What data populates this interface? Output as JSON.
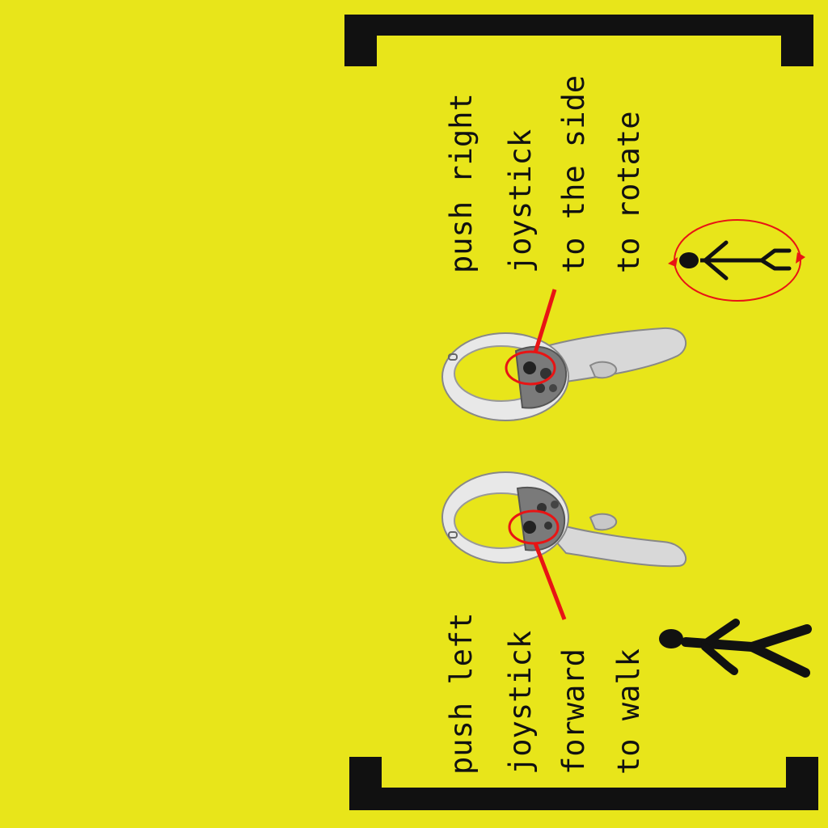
{
  "background_color": "#e8e51a",
  "accent_color": "#e81414",
  "instructions": {
    "right": {
      "lines": [
        "push right",
        "joystick",
        "to the side",
        "to rotate"
      ],
      "icon": "rotating-person-icon"
    },
    "left": {
      "lines": [
        "push left",
        "joystick",
        "forward",
        "to walk"
      ],
      "icon": "walking-person-icon"
    }
  },
  "controllers": {
    "right_icon": "vr-controller-icon",
    "left_icon": "vr-controller-icon",
    "highlight": "joystick-highlight-circle"
  }
}
